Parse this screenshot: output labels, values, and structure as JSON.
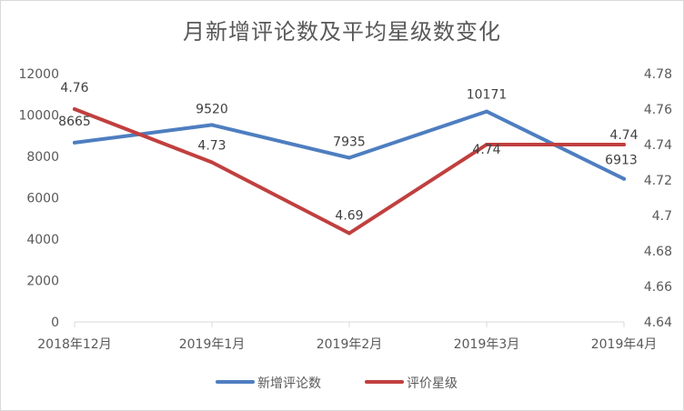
{
  "chart_data": {
    "type": "line",
    "title": "月新增评论数及平均星级数变化",
    "categories": [
      "2018年12月",
      "2019年1月",
      "2019年2月",
      "2019年3月",
      "2019年4月"
    ],
    "series": [
      {
        "name": "新增评论数",
        "axis": "left",
        "color": "#4e7ec0",
        "values": [
          8665,
          9520,
          7935,
          10171,
          6913
        ],
        "labels": [
          "8665",
          "9520",
          "7935",
          "10171",
          "6913"
        ]
      },
      {
        "name": "评价星级",
        "axis": "right",
        "color": "#c0403f",
        "values": [
          4.76,
          4.73,
          4.69,
          4.74,
          4.74
        ],
        "labels": [
          "4.76",
          "4.73",
          "4.69",
          "4.74",
          "4.74"
        ]
      }
    ],
    "y_left": {
      "range": [
        0,
        12000
      ],
      "ticks": [
        "0",
        "2000",
        "4000",
        "6000",
        "8000",
        "10000",
        "12000"
      ]
    },
    "y_right": {
      "range": [
        4.64,
        4.78
      ],
      "ticks": [
        "4.64",
        "4.66",
        "4.68",
        "4.7",
        "4.72",
        "4.74",
        "4.76",
        "4.78"
      ]
    },
    "grid": false,
    "legend_position": "bottom"
  }
}
